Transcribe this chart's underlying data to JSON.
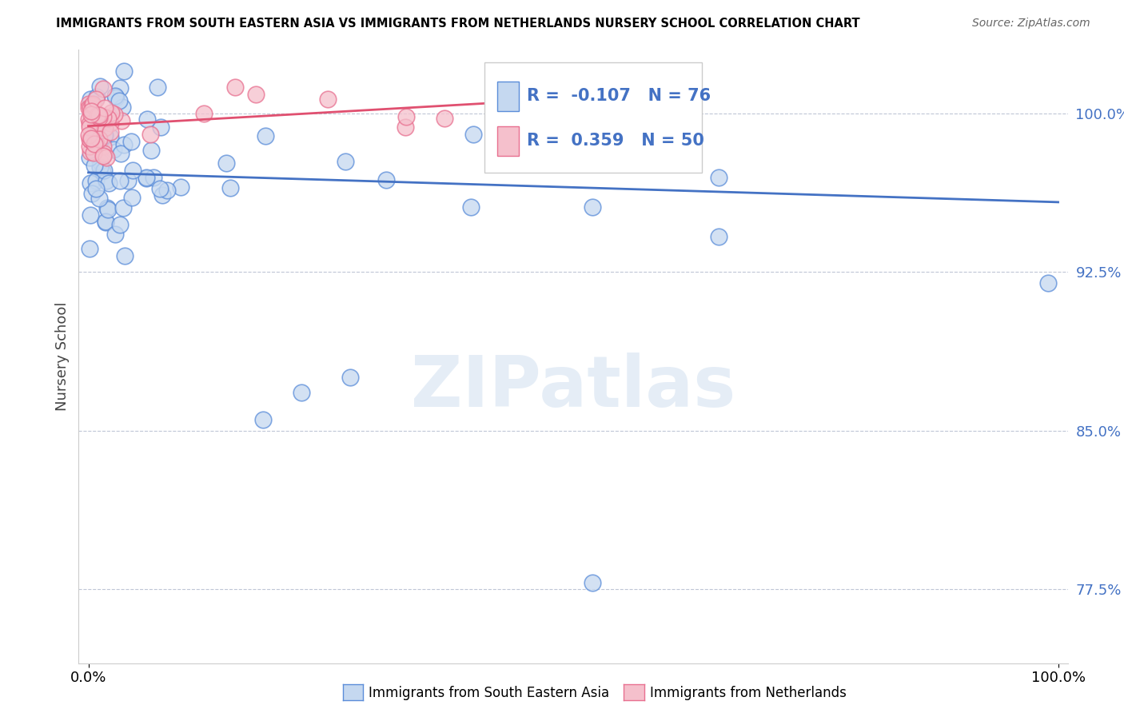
{
  "title": "IMMIGRANTS FROM SOUTH EASTERN ASIA VS IMMIGRANTS FROM NETHERLANDS NURSERY SCHOOL CORRELATION CHART",
  "source": "Source: ZipAtlas.com",
  "ylabel": "Nursery School",
  "ylim": [
    0.74,
    1.03
  ],
  "xlim": [
    -0.01,
    1.01
  ],
  "yticks": [
    0.775,
    0.85,
    0.925,
    1.0
  ],
  "ytick_labels": [
    "77.5%",
    "85.0%",
    "92.5%",
    "100.0%"
  ],
  "blue_face_color": "#c5d8f0",
  "pink_face_color": "#f5c0cc",
  "blue_edge_color": "#5b8dd9",
  "pink_edge_color": "#e87090",
  "blue_line_color": "#4472c4",
  "pink_line_color": "#e05070",
  "legend_R_blue": "-0.107",
  "legend_N_blue": "76",
  "legend_R_pink": "0.359",
  "legend_N_pink": "50",
  "legend_label_blue": "Immigrants from South Eastern Asia",
  "legend_label_pink": "Immigrants from Netherlands",
  "watermark": "ZIPatlas",
  "blue_trend_x": [
    0.0,
    1.0
  ],
  "blue_trend_y": [
    0.972,
    0.958
  ],
  "pink_trend_x": [
    0.0,
    0.42
  ],
  "pink_trend_y": [
    0.994,
    1.005
  ]
}
